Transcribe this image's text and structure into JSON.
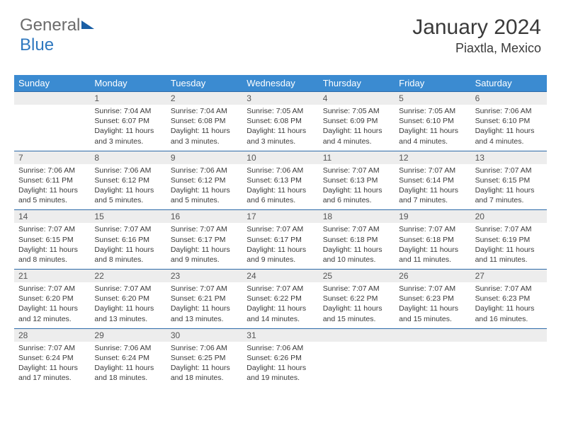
{
  "brand": {
    "part1": "General",
    "part2": "Blue"
  },
  "title": "January 2024",
  "location": "Piaxtla, Mexico",
  "colors": {
    "header_bg": "#3b8bd1",
    "header_text": "#ffffff",
    "week_border": "#2d6aa8",
    "daynum_bg": "#ededed",
    "text": "#3a3a3a"
  },
  "typography": {
    "title_fontsize": 30,
    "location_fontsize": 18,
    "dayheader_fontsize": 13,
    "daynum_fontsize": 12,
    "body_fontsize": 10.5
  },
  "day_names": [
    "Sunday",
    "Monday",
    "Tuesday",
    "Wednesday",
    "Thursday",
    "Friday",
    "Saturday"
  ],
  "weeks": [
    [
      {
        "n": "",
        "l1": "",
        "l2": "",
        "l3": "",
        "l4": ""
      },
      {
        "n": "1",
        "l1": "Sunrise: 7:04 AM",
        "l2": "Sunset: 6:07 PM",
        "l3": "Daylight: 11 hours",
        "l4": "and 3 minutes."
      },
      {
        "n": "2",
        "l1": "Sunrise: 7:04 AM",
        "l2": "Sunset: 6:08 PM",
        "l3": "Daylight: 11 hours",
        "l4": "and 3 minutes."
      },
      {
        "n": "3",
        "l1": "Sunrise: 7:05 AM",
        "l2": "Sunset: 6:08 PM",
        "l3": "Daylight: 11 hours",
        "l4": "and 3 minutes."
      },
      {
        "n": "4",
        "l1": "Sunrise: 7:05 AM",
        "l2": "Sunset: 6:09 PM",
        "l3": "Daylight: 11 hours",
        "l4": "and 4 minutes."
      },
      {
        "n": "5",
        "l1": "Sunrise: 7:05 AM",
        "l2": "Sunset: 6:10 PM",
        "l3": "Daylight: 11 hours",
        "l4": "and 4 minutes."
      },
      {
        "n": "6",
        "l1": "Sunrise: 7:06 AM",
        "l2": "Sunset: 6:10 PM",
        "l3": "Daylight: 11 hours",
        "l4": "and 4 minutes."
      }
    ],
    [
      {
        "n": "7",
        "l1": "Sunrise: 7:06 AM",
        "l2": "Sunset: 6:11 PM",
        "l3": "Daylight: 11 hours",
        "l4": "and 5 minutes."
      },
      {
        "n": "8",
        "l1": "Sunrise: 7:06 AM",
        "l2": "Sunset: 6:12 PM",
        "l3": "Daylight: 11 hours",
        "l4": "and 5 minutes."
      },
      {
        "n": "9",
        "l1": "Sunrise: 7:06 AM",
        "l2": "Sunset: 6:12 PM",
        "l3": "Daylight: 11 hours",
        "l4": "and 5 minutes."
      },
      {
        "n": "10",
        "l1": "Sunrise: 7:06 AM",
        "l2": "Sunset: 6:13 PM",
        "l3": "Daylight: 11 hours",
        "l4": "and 6 minutes."
      },
      {
        "n": "11",
        "l1": "Sunrise: 7:07 AM",
        "l2": "Sunset: 6:13 PM",
        "l3": "Daylight: 11 hours",
        "l4": "and 6 minutes."
      },
      {
        "n": "12",
        "l1": "Sunrise: 7:07 AM",
        "l2": "Sunset: 6:14 PM",
        "l3": "Daylight: 11 hours",
        "l4": "and 7 minutes."
      },
      {
        "n": "13",
        "l1": "Sunrise: 7:07 AM",
        "l2": "Sunset: 6:15 PM",
        "l3": "Daylight: 11 hours",
        "l4": "and 7 minutes."
      }
    ],
    [
      {
        "n": "14",
        "l1": "Sunrise: 7:07 AM",
        "l2": "Sunset: 6:15 PM",
        "l3": "Daylight: 11 hours",
        "l4": "and 8 minutes."
      },
      {
        "n": "15",
        "l1": "Sunrise: 7:07 AM",
        "l2": "Sunset: 6:16 PM",
        "l3": "Daylight: 11 hours",
        "l4": "and 8 minutes."
      },
      {
        "n": "16",
        "l1": "Sunrise: 7:07 AM",
        "l2": "Sunset: 6:17 PM",
        "l3": "Daylight: 11 hours",
        "l4": "and 9 minutes."
      },
      {
        "n": "17",
        "l1": "Sunrise: 7:07 AM",
        "l2": "Sunset: 6:17 PM",
        "l3": "Daylight: 11 hours",
        "l4": "and 9 minutes."
      },
      {
        "n": "18",
        "l1": "Sunrise: 7:07 AM",
        "l2": "Sunset: 6:18 PM",
        "l3": "Daylight: 11 hours",
        "l4": "and 10 minutes."
      },
      {
        "n": "19",
        "l1": "Sunrise: 7:07 AM",
        "l2": "Sunset: 6:18 PM",
        "l3": "Daylight: 11 hours",
        "l4": "and 11 minutes."
      },
      {
        "n": "20",
        "l1": "Sunrise: 7:07 AM",
        "l2": "Sunset: 6:19 PM",
        "l3": "Daylight: 11 hours",
        "l4": "and 11 minutes."
      }
    ],
    [
      {
        "n": "21",
        "l1": "Sunrise: 7:07 AM",
        "l2": "Sunset: 6:20 PM",
        "l3": "Daylight: 11 hours",
        "l4": "and 12 minutes."
      },
      {
        "n": "22",
        "l1": "Sunrise: 7:07 AM",
        "l2": "Sunset: 6:20 PM",
        "l3": "Daylight: 11 hours",
        "l4": "and 13 minutes."
      },
      {
        "n": "23",
        "l1": "Sunrise: 7:07 AM",
        "l2": "Sunset: 6:21 PM",
        "l3": "Daylight: 11 hours",
        "l4": "and 13 minutes."
      },
      {
        "n": "24",
        "l1": "Sunrise: 7:07 AM",
        "l2": "Sunset: 6:22 PM",
        "l3": "Daylight: 11 hours",
        "l4": "and 14 minutes."
      },
      {
        "n": "25",
        "l1": "Sunrise: 7:07 AM",
        "l2": "Sunset: 6:22 PM",
        "l3": "Daylight: 11 hours",
        "l4": "and 15 minutes."
      },
      {
        "n": "26",
        "l1": "Sunrise: 7:07 AM",
        "l2": "Sunset: 6:23 PM",
        "l3": "Daylight: 11 hours",
        "l4": "and 15 minutes."
      },
      {
        "n": "27",
        "l1": "Sunrise: 7:07 AM",
        "l2": "Sunset: 6:23 PM",
        "l3": "Daylight: 11 hours",
        "l4": "and 16 minutes."
      }
    ],
    [
      {
        "n": "28",
        "l1": "Sunrise: 7:07 AM",
        "l2": "Sunset: 6:24 PM",
        "l3": "Daylight: 11 hours",
        "l4": "and 17 minutes."
      },
      {
        "n": "29",
        "l1": "Sunrise: 7:06 AM",
        "l2": "Sunset: 6:24 PM",
        "l3": "Daylight: 11 hours",
        "l4": "and 18 minutes."
      },
      {
        "n": "30",
        "l1": "Sunrise: 7:06 AM",
        "l2": "Sunset: 6:25 PM",
        "l3": "Daylight: 11 hours",
        "l4": "and 18 minutes."
      },
      {
        "n": "31",
        "l1": "Sunrise: 7:06 AM",
        "l2": "Sunset: 6:26 PM",
        "l3": "Daylight: 11 hours",
        "l4": "and 19 minutes."
      },
      {
        "n": "",
        "l1": "",
        "l2": "",
        "l3": "",
        "l4": ""
      },
      {
        "n": "",
        "l1": "",
        "l2": "",
        "l3": "",
        "l4": ""
      },
      {
        "n": "",
        "l1": "",
        "l2": "",
        "l3": "",
        "l4": ""
      }
    ]
  ]
}
